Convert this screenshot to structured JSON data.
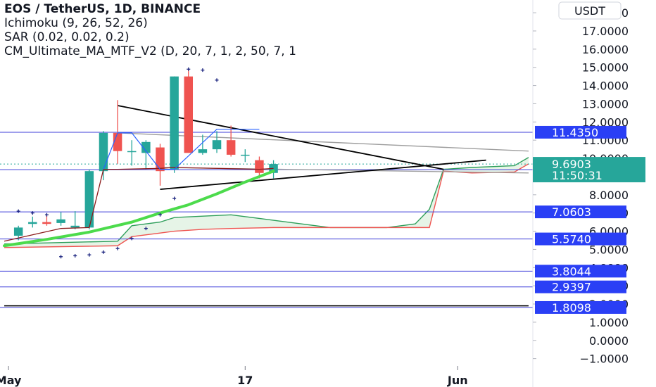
{
  "legend": {
    "title": "EOS / TetherUS, 1D, BINANCE",
    "ichimoku": "Ichimoku (9, 26, 52, 26)",
    "sar": "SAR (0.02, 0.02, 0.2)",
    "ma": "CM_Ultimate_MA_MTF_V2 (D, 20, 7, 1, 2, 50, 7, 1"
  },
  "currency_button": "USDT",
  "colors": {
    "up": "#26a69a",
    "down": "#ef5350",
    "hline": "#3f3fd9",
    "badge": "#2a3ff5",
    "live_badge": "#26a69a",
    "ma_green": "#4cdb4c",
    "cloud_green": "#2e9e5a",
    "cloud_red": "#ef5350",
    "trend": "#000000",
    "gray_line": "#9e9e9e"
  },
  "chart_data": {
    "type": "candlestick",
    "title": "EOS / TetherUS, 1D, BINANCE",
    "ylim": [
      -1.4,
      18.7
    ],
    "y_ticks": [
      "−1.0000",
      "0.0000",
      "1.0000",
      "2.0000",
      "3.0000",
      "4.0000",
      "5.0000",
      "6.0000",
      "7.0000",
      "8.0000",
      "9.0000",
      "10.0000",
      "11.0000",
      "12.0000",
      "13.0000",
      "14.0000",
      "15.0000",
      "16.0000",
      "17.0000",
      "18.0000"
    ],
    "x_labels": [
      {
        "label": "May",
        "slot": -0.7
      },
      {
        "label": "17",
        "slot": 16
      },
      {
        "label": "Jun",
        "slot": 31
      }
    ],
    "candles": [
      {
        "o": 5.75,
        "h": 6.3,
        "l": 5.5,
        "c": 6.2
      },
      {
        "o": 6.4,
        "h": 6.8,
        "l": 6.2,
        "c": 6.5
      },
      {
        "o": 6.5,
        "h": 6.9,
        "l": 6.3,
        "c": 6.4
      },
      {
        "o": 6.45,
        "h": 7.05,
        "l": 6.3,
        "c": 6.65
      },
      {
        "o": 6.2,
        "h": 7.1,
        "l": 6.1,
        "c": 6.3
      },
      {
        "o": 6.2,
        "h": 9.4,
        "l": 6.1,
        "c": 9.3
      },
      {
        "o": 9.3,
        "h": 11.5,
        "l": 8.8,
        "c": 11.4
      },
      {
        "o": 11.4,
        "h": 13.2,
        "l": 9.7,
        "c": 10.4
      },
      {
        "o": 10.4,
        "h": 11.0,
        "l": 9.6,
        "c": 10.4
      },
      {
        "o": 10.3,
        "h": 11.0,
        "l": 9.4,
        "c": 10.9
      },
      {
        "o": 10.6,
        "h": 10.8,
        "l": 8.5,
        "c": 9.3
      },
      {
        "o": 9.4,
        "h": 14.5,
        "l": 9.2,
        "c": 14.5
      },
      {
        "o": 14.5,
        "h": 14.9,
        "l": 10.5,
        "c": 10.3
      },
      {
        "o": 10.3,
        "h": 11.3,
        "l": 10.2,
        "c": 10.5
      },
      {
        "o": 10.5,
        "h": 11.5,
        "l": 10.3,
        "c": 11.0
      },
      {
        "o": 11.0,
        "h": 11.8,
        "l": 10.1,
        "c": 10.2
      },
      {
        "o": 10.2,
        "h": 10.5,
        "l": 9.8,
        "c": 10.2
      },
      {
        "o": 9.9,
        "h": 10.1,
        "l": 8.9,
        "c": 9.2
      },
      {
        "o": 9.2,
        "h": 9.9,
        "l": 8.9,
        "c": 9.69
      }
    ],
    "hlines": [
      {
        "value": 11.435,
        "label": "11.4350"
      },
      {
        "value": 9.3776,
        "label": "9.3776"
      },
      {
        "value": 7.0603,
        "label": "7.0603"
      },
      {
        "value": 5.574,
        "label": "5.5740"
      },
      {
        "value": 3.8044,
        "label": "3.8044"
      },
      {
        "value": 2.9397,
        "label": "2.9397"
      },
      {
        "value": 1.8098,
        "label": "1.8098"
      }
    ],
    "last_price": {
      "value": 9.6903,
      "label": "9.6903",
      "countdown": "11:50:31"
    },
    "ma_line": [
      [
        -1,
        5.2
      ],
      [
        2,
        5.55
      ],
      [
        5,
        5.95
      ],
      [
        8,
        6.5
      ],
      [
        10,
        7.0
      ],
      [
        12,
        7.45
      ],
      [
        14,
        8.05
      ],
      [
        16,
        8.7
      ],
      [
        18,
        9.3
      ]
    ],
    "sar_dots": [
      [
        0,
        7.1
      ],
      [
        1,
        7.0
      ],
      [
        2,
        6.9
      ],
      [
        3,
        4.6
      ],
      [
        4,
        4.65
      ],
      [
        5,
        4.7
      ],
      [
        6,
        4.85
      ],
      [
        7,
        5.05
      ],
      [
        8,
        5.6
      ],
      [
        9,
        6.15
      ],
      [
        10,
        6.9
      ],
      [
        11,
        7.8
      ],
      [
        12,
        14.9
      ],
      [
        13,
        14.85
      ],
      [
        14,
        14.3
      ]
    ],
    "tenkan_kijun": [
      [
        -1,
        5.45
      ],
      [
        3,
        6.15
      ],
      [
        5,
        6.2
      ],
      [
        6,
        9.4
      ],
      [
        7,
        9.4
      ],
      [
        10,
        9.45
      ],
      [
        11,
        9.5
      ],
      [
        17,
        9.4
      ],
      [
        18,
        9.45
      ]
    ],
    "tenkan_blue": [
      [
        6,
        9.4
      ],
      [
        7,
        11.4
      ],
      [
        8,
        11.4
      ],
      [
        10,
        9.4
      ],
      [
        11,
        9.4
      ],
      [
        14,
        11.6
      ],
      [
        17,
        11.6
      ]
    ],
    "cloud_top": [
      [
        -1,
        5.3
      ],
      [
        7,
        5.45
      ],
      [
        8,
        6.3
      ],
      [
        10,
        6.5
      ],
      [
        11,
        6.75
      ],
      [
        15,
        6.9
      ],
      [
        17,
        6.7
      ],
      [
        18,
        6.6
      ],
      [
        22,
        6.2
      ],
      [
        26,
        6.2
      ],
      [
        28,
        6.4
      ],
      [
        29,
        7.2
      ],
      [
        30,
        9.4
      ],
      [
        32,
        9.5
      ],
      [
        35,
        9.6
      ],
      [
        36,
        10.05
      ]
    ],
    "cloud_bottom": [
      [
        -1,
        5.1
      ],
      [
        7,
        5.2
      ],
      [
        8,
        5.7
      ],
      [
        10,
        5.9
      ],
      [
        11,
        6.0
      ],
      [
        13,
        6.1
      ],
      [
        15,
        6.15
      ],
      [
        18,
        6.2
      ],
      [
        22,
        6.2
      ],
      [
        26,
        6.2
      ],
      [
        29,
        6.2
      ],
      [
        30,
        9.3
      ],
      [
        32,
        9.2
      ],
      [
        35,
        9.25
      ],
      [
        36,
        9.7
      ]
    ],
    "trend_lines": [
      {
        "from": [
          7,
          12.9
        ],
        "to": [
          30,
          9.4
        ]
      },
      {
        "from": [
          10,
          8.3
        ],
        "to": [
          33,
          9.9
        ]
      }
    ],
    "gray_lines": [
      {
        "from": [
          7,
          11.4
        ],
        "to": [
          36,
          10.4
        ]
      },
      {
        "from": [
          10,
          9.5
        ],
        "to": [
          36,
          9.2
        ]
      },
      {
        "from": [
          -1,
          1.9
        ],
        "to": [
          36,
          1.9
        ]
      }
    ]
  }
}
